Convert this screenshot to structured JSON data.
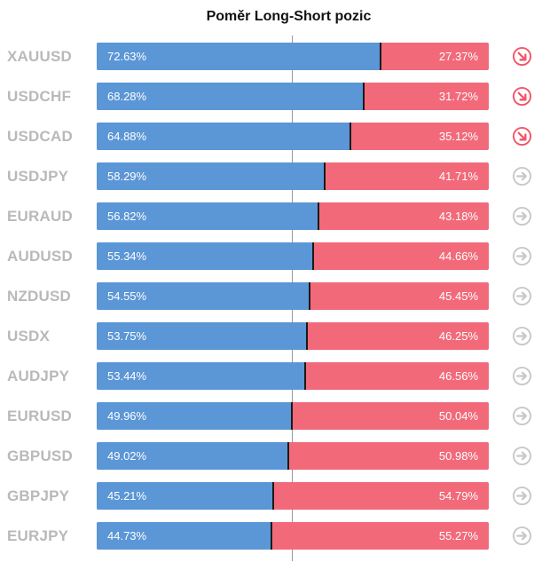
{
  "title": "Poměr Long-Short pozic",
  "colors": {
    "long": "#5b96d6",
    "short": "#f26a7a",
    "neutral_icon": "#c8c8c8",
    "bearish_icon": "#f0566a"
  },
  "chart_data": {
    "type": "bar",
    "title": "Poměr Long-Short pozic",
    "categories": [
      "XAUUSD",
      "USDCHF",
      "USDCAD",
      "USDJPY",
      "EURAUD",
      "AUDUSD",
      "NZDUSD",
      "USDX",
      "AUDJPY",
      "EURUSD",
      "GBPUSD",
      "GBPJPY",
      "EURJPY"
    ],
    "series": [
      {
        "values": [
          72.63,
          68.28,
          64.88,
          58.29,
          56.82,
          55.34,
          54.55,
          53.75,
          53.44,
          49.96,
          49.02,
          45.21,
          44.73
        ]
      },
      {
        "values": [
          27.37,
          31.72,
          35.12,
          41.71,
          43.18,
          44.66,
          45.45,
          46.25,
          46.56,
          50.04,
          50.98,
          54.79,
          55.27
        ]
      }
    ],
    "long_labels": [
      "72.63%",
      "68.28%",
      "64.88%",
      "58.29%",
      "56.82%",
      "55.34%",
      "54.55%",
      "53.75%",
      "53.44%",
      "49.96%",
      "49.02%",
      "45.21%",
      "44.73%"
    ],
    "short_labels": [
      "27.37%",
      "31.72%",
      "35.12%",
      "41.71%",
      "43.18%",
      "44.66%",
      "45.45%",
      "46.25%",
      "46.56%",
      "50.04%",
      "50.98%",
      "54.79%",
      "55.27%"
    ],
    "signals": [
      "arrow-down-right-icon",
      "arrow-down-right-icon",
      "arrow-down-right-icon",
      "arrow-right-icon",
      "arrow-right-icon",
      "arrow-right-icon",
      "arrow-right-icon",
      "arrow-right-icon",
      "arrow-right-icon",
      "arrow-right-icon",
      "arrow-right-icon",
      "arrow-right-icon",
      "arrow-right-icon"
    ],
    "stacked": true,
    "orientation": "horizontal",
    "xlim": [
      0,
      100
    ],
    "reference_line": 50
  }
}
